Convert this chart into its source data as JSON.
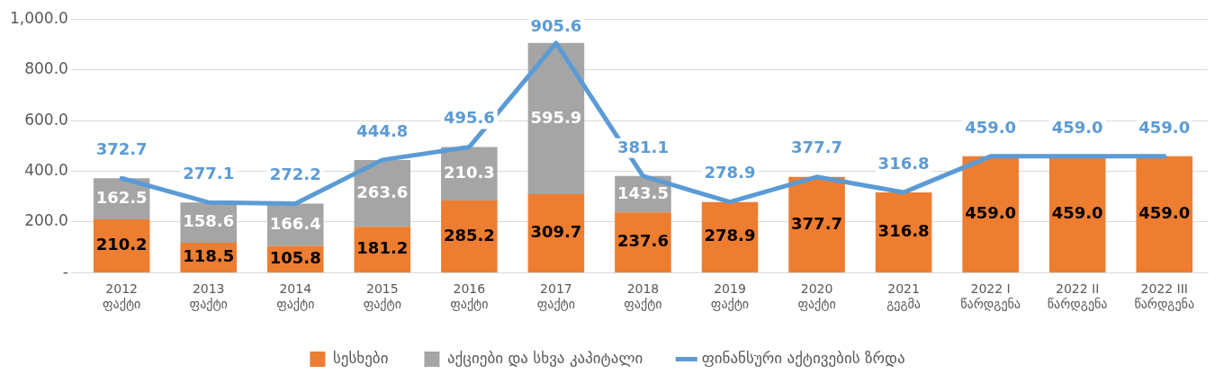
{
  "chart_data": {
    "type": "bar",
    "stacked": true,
    "categories": [
      "2012\nფაქტი",
      "2013\nფაქტი",
      "2014\nფაქტი",
      "2015\nფაქტი",
      "2016\nფაქტი",
      "2017\nფაქტი",
      "2018\nფაქტი",
      "2019\nფაქტი",
      "2020\nფაქტი",
      "2021\nგეგმა",
      "2022 I\nწარდგენა",
      "2022 II\nწარდგენა",
      "2022 III\nწარდგენა"
    ],
    "series": [
      {
        "name": "სესხები",
        "color": "#ed7d31",
        "values": [
          210.2,
          118.5,
          105.8,
          181.2,
          285.2,
          309.7,
          237.6,
          278.9,
          377.7,
          316.8,
          459.0,
          459.0,
          459.0
        ],
        "value_labels": [
          "210.2",
          "118.5",
          "105.8",
          "181.2",
          "285.2",
          "309.7",
          "237.6",
          "278.9",
          "377.7",
          "316.8",
          "459.0",
          "459.0",
          "459.0"
        ]
      },
      {
        "name": "აქციები და სხვა კაპიტალი",
        "color": "#a5a5a5",
        "values": [
          162.5,
          158.6,
          166.4,
          263.6,
          210.3,
          595.9,
          143.5,
          null,
          null,
          null,
          null,
          null,
          null
        ],
        "value_labels": [
          "162.5",
          "158.6",
          "166.4",
          "263.6",
          "210.3",
          "595.9",
          "143.5",
          null,
          null,
          null,
          null,
          null,
          null
        ]
      },
      {
        "name": "ფინანსური აქტივების ზრდა",
        "type": "line",
        "color": "#5b9bd5",
        "values": [
          372.7,
          277.1,
          272.2,
          444.8,
          495.6,
          905.6,
          381.1,
          278.9,
          377.7,
          316.8,
          459.0,
          459.0,
          459.0
        ],
        "value_labels": [
          "372.7",
          "277.1",
          "272.2",
          "444.8",
          "495.6",
          "905.6",
          "381.1",
          "278.9",
          "377.7",
          "316.8",
          "459.0",
          "459.0",
          "459.0"
        ]
      }
    ],
    "ylim": [
      0,
      1000
    ],
    "yticks": [
      {
        "value": 0,
        "label": "-"
      },
      {
        "value": 200,
        "label": "200.0"
      },
      {
        "value": 400,
        "label": "400.0"
      },
      {
        "value": 600,
        "label": "600.0"
      },
      {
        "value": 800,
        "label": "800.0"
      },
      {
        "value": 1000,
        "label": "1,000.0"
      }
    ],
    "grid": "y",
    "legend": "bottom",
    "marker": "none"
  }
}
